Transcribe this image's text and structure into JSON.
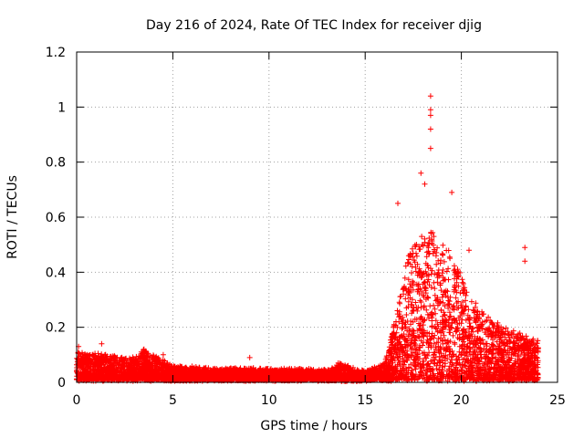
{
  "chart_data": {
    "type": "scatter",
    "title": "Day 216 of 2024, Rate Of TEC Index for receiver djig",
    "xlabel": "GPS time / hours",
    "ylabel": "ROTI / TECUs",
    "xlim": [
      0,
      25
    ],
    "ylim": [
      0,
      1.2
    ],
    "x_ticks": [
      "0",
      "5",
      "10",
      "15",
      "20",
      "25"
    ],
    "y_ticks": [
      "0",
      "0.2",
      "0.4",
      "0.6",
      "0.8",
      "1",
      "1.2"
    ],
    "grid": true,
    "marker": "+",
    "color": "#ff0000",
    "data_extent_x": [
      0,
      24
    ],
    "notable_points": [
      {
        "x": 18.4,
        "y": 1.04
      },
      {
        "x": 18.4,
        "y": 0.99
      },
      {
        "x": 18.4,
        "y": 0.97
      },
      {
        "x": 18.4,
        "y": 0.92
      },
      {
        "x": 18.4,
        "y": 0.85
      },
      {
        "x": 17.9,
        "y": 0.76
      },
      {
        "x": 18.1,
        "y": 0.72
      },
      {
        "x": 19.5,
        "y": 0.69
      },
      {
        "x": 16.7,
        "y": 0.65
      },
      {
        "x": 23.3,
        "y": 0.49
      },
      {
        "x": 23.3,
        "y": 0.44
      },
      {
        "x": 20.4,
        "y": 0.48
      },
      {
        "x": 0.1,
        "y": 0.13
      },
      {
        "x": 1.3,
        "y": 0.14
      },
      {
        "x": 3.5,
        "y": 0.12
      },
      {
        "x": 4.5,
        "y": 0.1
      },
      {
        "x": 9.0,
        "y": 0.09
      },
      {
        "x": 13.6,
        "y": 0.07
      }
    ],
    "envelope": [
      {
        "x": 0,
        "y": 0.1
      },
      {
        "x": 1.5,
        "y": 0.09
      },
      {
        "x": 3,
        "y": 0.08
      },
      {
        "x": 3.5,
        "y": 0.11
      },
      {
        "x": 5,
        "y": 0.05
      },
      {
        "x": 7,
        "y": 0.04
      },
      {
        "x": 10,
        "y": 0.04
      },
      {
        "x": 13,
        "y": 0.035
      },
      {
        "x": 13.7,
        "y": 0.06
      },
      {
        "x": 15,
        "y": 0.03
      },
      {
        "x": 16,
        "y": 0.06
      },
      {
        "x": 16.5,
        "y": 0.2
      },
      {
        "x": 17,
        "y": 0.4
      },
      {
        "x": 17.5,
        "y": 0.5
      },
      {
        "x": 18.5,
        "y": 0.55
      },
      {
        "x": 19.5,
        "y": 0.45
      },
      {
        "x": 20.5,
        "y": 0.3
      },
      {
        "x": 21.5,
        "y": 0.22
      },
      {
        "x": 22.5,
        "y": 0.18
      },
      {
        "x": 23.5,
        "y": 0.16
      },
      {
        "x": 24,
        "y": 0.14
      }
    ]
  }
}
